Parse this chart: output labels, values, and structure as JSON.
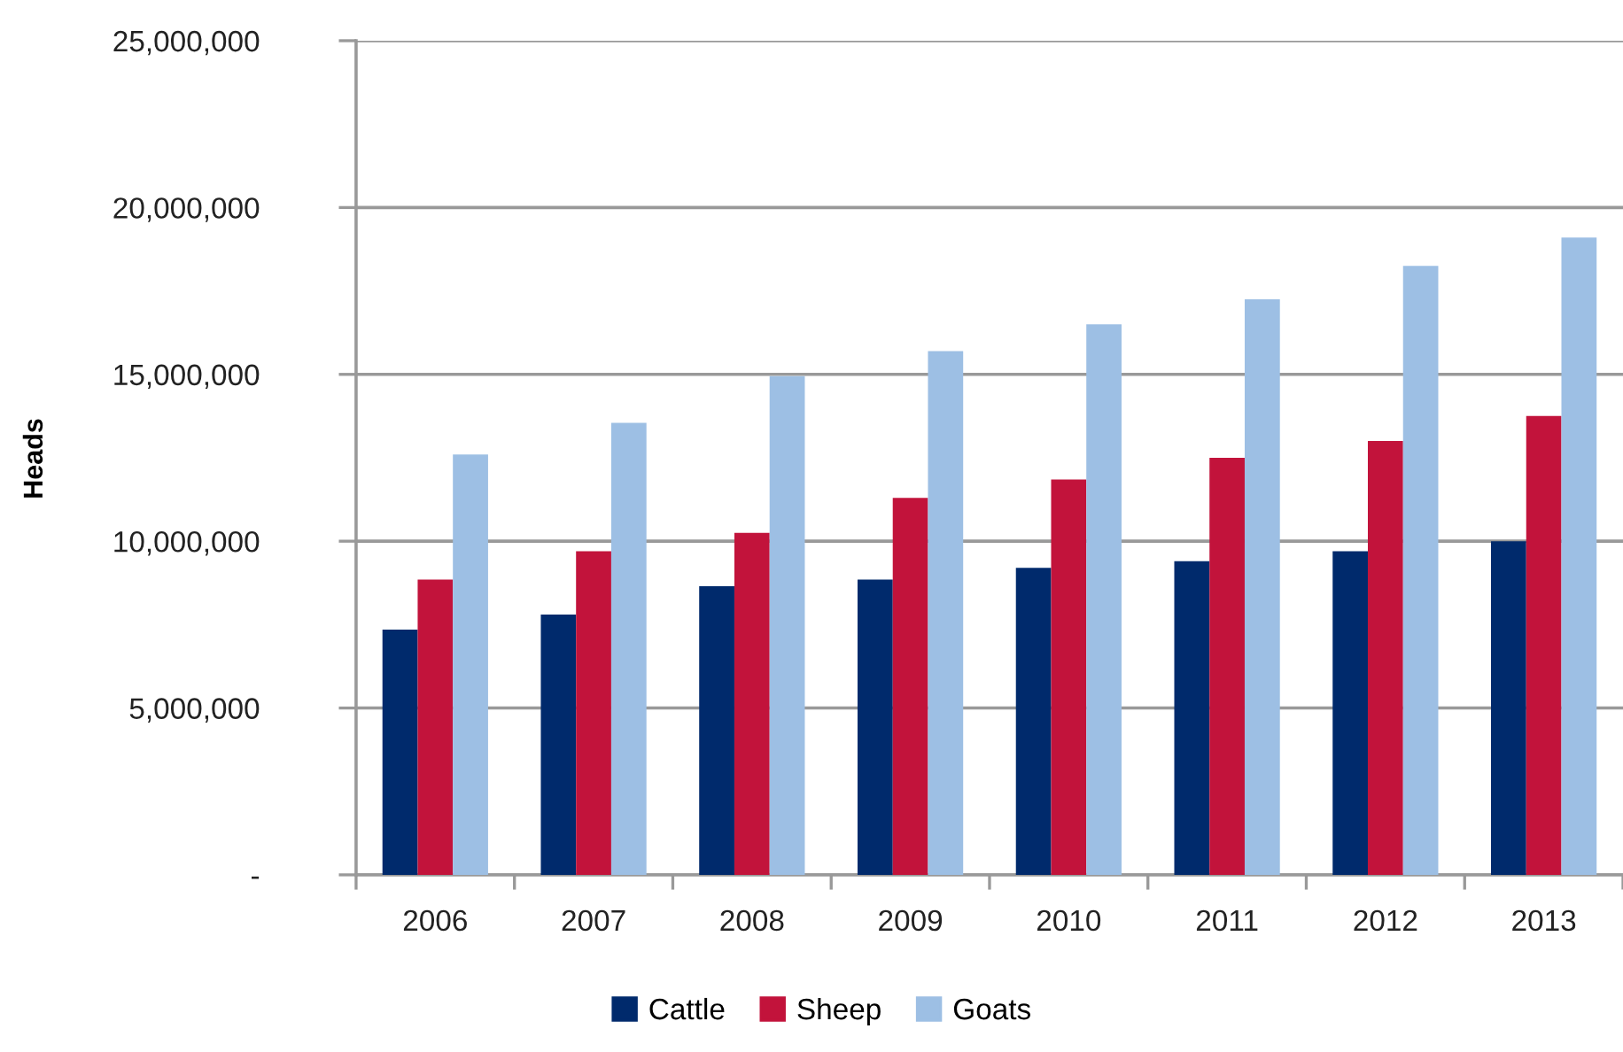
{
  "chart_data": {
    "type": "bar",
    "ylabel": "Heads",
    "categories": [
      "2006",
      "2007",
      "2008",
      "2009",
      "2010",
      "2011",
      "2012",
      "2013"
    ],
    "series": [
      {
        "name": "Cattle",
        "color": "#002a6c",
        "values": [
          7350000,
          7800000,
          8650000,
          8850000,
          9200000,
          9400000,
          9700000,
          10000000
        ]
      },
      {
        "name": "Sheep",
        "color": "#c2133b",
        "values": [
          8850000,
          9700000,
          10250000,
          11300000,
          11850000,
          12500000,
          13000000,
          13750000
        ]
      },
      {
        "name": "Goats",
        "color": "#9dbfe4",
        "values": [
          12600000,
          13550000,
          14950000,
          15700000,
          16500000,
          17250000,
          18250000,
          19100000
        ]
      }
    ],
    "ylim": [
      0,
      25000000
    ],
    "yticks": [
      {
        "value": 0,
        "label": "-"
      },
      {
        "value": 5000000,
        "label": "5,000,000"
      },
      {
        "value": 10000000,
        "label": "10,000,000"
      },
      {
        "value": 15000000,
        "label": "15,000,000"
      },
      {
        "value": 20000000,
        "label": "20,000,000"
      },
      {
        "value": 25000000,
        "label": "25,000,000"
      }
    ],
    "grid": "y",
    "legend": "bottom"
  }
}
